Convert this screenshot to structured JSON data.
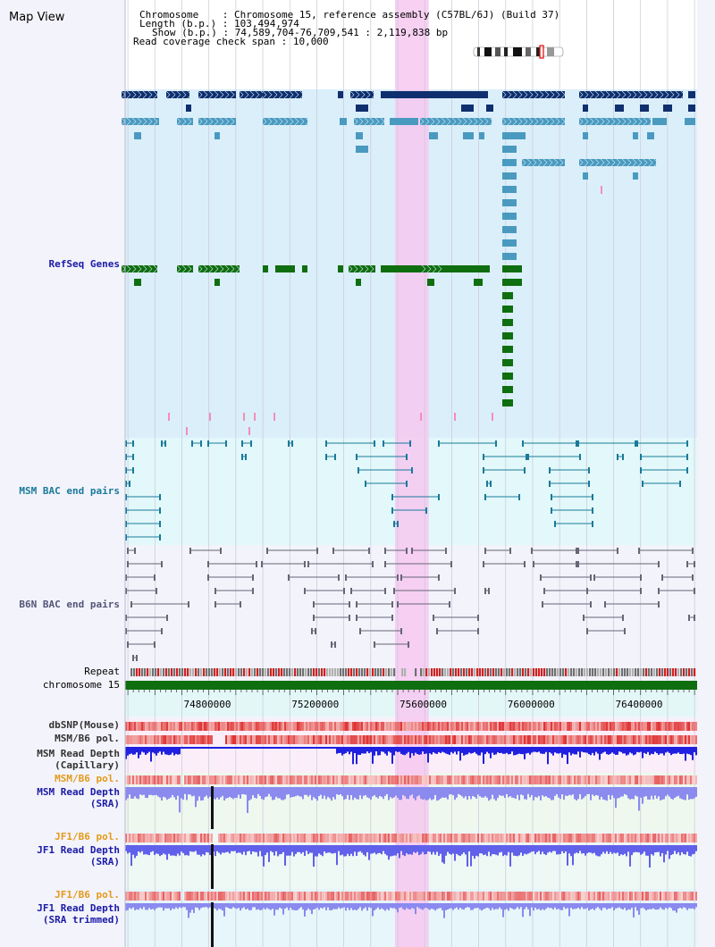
{
  "view_title": "Map View",
  "info": {
    "chromosome_label": "Chromosome",
    "chromosome_value": "Chromosome 15, reference assembly (C57BL/6J) (Build 37)",
    "length_label": "Length (b.p.)",
    "length_value": "103,494,974",
    "show_label": "Show (b.p.)",
    "show_value": "74,589,704-76,709,541 : 2,119,838 bp",
    "coverage_label": "Read coverage check span",
    "coverage_value": "10,000"
  },
  "region": {
    "start": 74589704,
    "end": 76709541
  },
  "highlight": {
    "start": 75590000,
    "end": 75715000,
    "color": "#f6c8f0"
  },
  "axis": {
    "label": "chromosome 15",
    "ticks": [
      74800000,
      75200000,
      75600000,
      76000000,
      76400000
    ],
    "minor_step": 100000
  },
  "tracks": {
    "refseq": {
      "label": "RefSeq Genes",
      "color": "#1a1aa6",
      "bg": "#dbeffa"
    },
    "msm_bac": {
      "label": "MSM BAC end pairs",
      "color": "#1a7a9a",
      "bg": "#e2f8fa"
    },
    "b6n_bac": {
      "label": "B6N BAC end pairs",
      "color": "#555577",
      "bg": "#f3f3fb"
    },
    "repeat": {
      "label": "Repeat"
    },
    "dbsnp": {
      "label": "dbSNP(Mouse)"
    },
    "msm_b6_pol": {
      "label": "MSM/B6 pol."
    },
    "msm_depth_cap": {
      "label": "MSM Read Depth",
      "sub": "(Capillary)"
    },
    "msm_b6_pol2": {
      "label": "MSM/B6 pol.",
      "color": "#e39a1a"
    },
    "msm_depth_sra": {
      "label": "MSM Read Depth",
      "sub": "(SRA)",
      "color": "#1a1aa6"
    },
    "jf1_b6_pol": {
      "label": "JF1/B6 pol.",
      "color": "#e39a1a"
    },
    "jf1_depth_sra": {
      "label": "JF1 Read Depth",
      "sub": "(SRA)",
      "color": "#1a1aa6"
    },
    "jf1_b6_pol2": {
      "label": "JF1/B6 pol.",
      "color": "#e39a1a"
    },
    "jf1_depth_trim": {
      "label": "JF1 Read Depth",
      "sub": "(SRA trimmed)",
      "color": "#1a1aa6"
    }
  },
  "colors": {
    "gene_dark": "#0f2f6e",
    "gene_mid": "#4a9ac0",
    "gene_green": "#0f6e0f",
    "chrom_bar": "#0f6e0f",
    "depth_blue": "#2020e0",
    "depth_light": "#8a8aef",
    "snp_red": "#e02020"
  }
}
